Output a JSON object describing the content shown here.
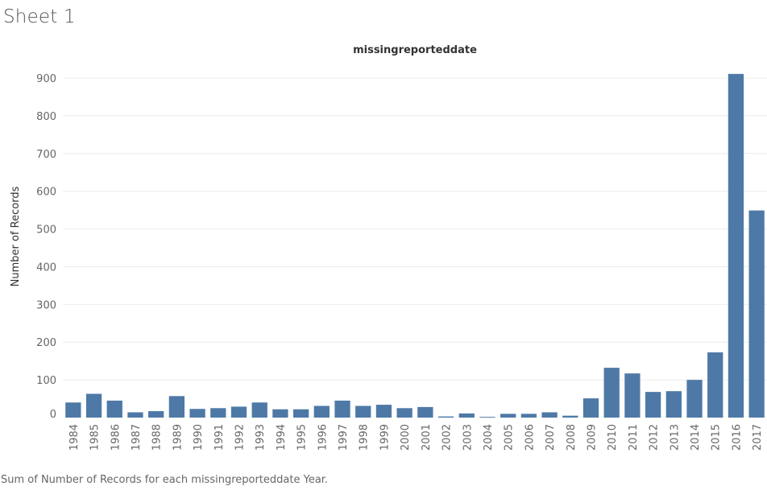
{
  "sheet": {
    "title": "Sheet 1",
    "caption": "Sum of Number of Records for each missingreporteddate Year."
  },
  "colors": {
    "bar": "#4e79a7",
    "gridline": "#ececec",
    "text": "#666666"
  },
  "chart_data": {
    "type": "bar",
    "title": "missingreporteddate",
    "xlabel": "",
    "ylabel": "Number of Records",
    "ylim": [
      0,
      940
    ],
    "yticks": [
      0,
      100,
      200,
      300,
      400,
      500,
      600,
      700,
      800,
      900
    ],
    "grid": true,
    "categories": [
      "1984",
      "1985",
      "1986",
      "1987",
      "1988",
      "1989",
      "1990",
      "1991",
      "1992",
      "1993",
      "1994",
      "1995",
      "1996",
      "1997",
      "1998",
      "1999",
      "2000",
      "2001",
      "2002",
      "2003",
      "2004",
      "2005",
      "2006",
      "2007",
      "2008",
      "2009",
      "2010",
      "2011",
      "2012",
      "2013",
      "2014",
      "2015",
      "2016",
      "2017"
    ],
    "values": [
      40,
      63,
      45,
      14,
      17,
      57,
      23,
      25,
      29,
      40,
      22,
      22,
      31,
      45,
      31,
      34,
      25,
      28,
      3,
      11,
      2,
      10,
      10,
      14,
      5,
      51,
      132,
      117,
      68,
      70,
      100,
      173,
      911,
      549
    ]
  }
}
